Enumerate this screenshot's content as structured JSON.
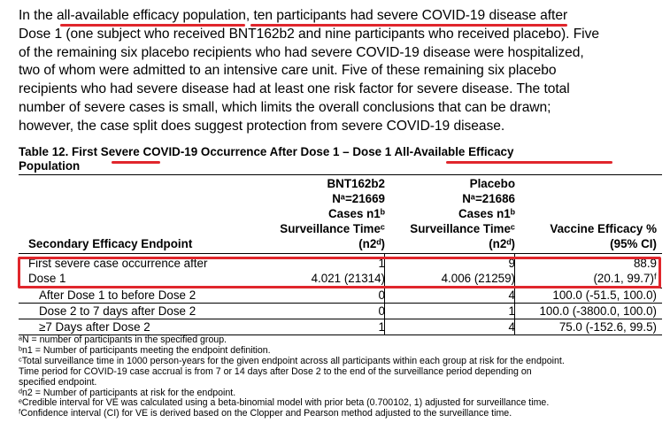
{
  "paragraph": {
    "lines": [
      {
        "pre": "In the ",
        "hl1": "all-available efficacy population, ten participants had severe COVID-19 disease",
        "post": " after"
      },
      {
        "text": "Dose 1 (one subject who received BNT162b2 and nine participants who received placebo). Five"
      },
      {
        "text": "of the remaining six placebo recipients who had severe COVID-19 disease were hospitalized,"
      },
      {
        "text": "two of whom were admitted to an intensive care unit. Five of these remaining six placebo"
      },
      {
        "text": "recipients who had severe disease had at least one risk factor for severe disease. The total"
      },
      {
        "text": "number of severe cases is small, which limits the overall conclusions that can be drawn;"
      },
      {
        "text": "however, the case split does suggest protection from severe COVID-19 disease."
      }
    ]
  },
  "table": {
    "caption_pre": "Table 12. First ",
    "caption_severe": "Severe",
    "caption_mid": " COVID-19 Occurrence After Dose 1 – Dose 1 ",
    "caption_aa": "All-Available Efficacy",
    "caption_line2": "Population",
    "headers": {
      "endpoint": "Secondary Efficacy Endpoint",
      "col1": [
        "BNT162b2",
        "Nᵃ=21669",
        "Cases n1ᵇ",
        "Surveillance Timeᶜ",
        "(n2ᵈ)"
      ],
      "col2": [
        "Placebo",
        "Nᵃ=21686",
        "Cases n1ᵇ",
        "Surveillance Timeᶜ",
        "(n2ᵈ)"
      ],
      "col3": [
        "Vaccine Efficacy %",
        "(95% CI)"
      ]
    },
    "rows": [
      {
        "label_l1": "First severe case occurrence after",
        "label_l2": "Dose 1",
        "c1_l1": "1",
        "c1_l2": "4.021 (21314)",
        "c2_l1": "9",
        "c2_l2": "4.006 (21259)",
        "c3_l1": "88.9",
        "c3_l2": "(20.1, 99.7)ᶠ"
      },
      {
        "label": "After Dose 1 to before Dose 2",
        "c1": "0",
        "c2": "4",
        "c3": "100.0 (-51.5, 100.0)"
      },
      {
        "label": "Dose 2 to 7 days after Dose 2",
        "c1": "0",
        "c2": "1",
        "c3": "100.0 (-3800.0, 100.0)"
      },
      {
        "label": "≥7 Days after Dose 2",
        "c1": "1",
        "c2": "4",
        "c3": "75.0 (-152.6, 99.5)"
      }
    ]
  },
  "footnotes": [
    "ᵃN = number of participants in the specified group.",
    "ᵇn1 = Number of participants meeting the endpoint definition.",
    "ᶜTotal surveillance time in 1000 person-years for the given endpoint across all participants within each group at risk for the endpoint.",
    "Time period for COVID-19 case accrual is from 7 or 14 days after Dose 2 to the end of the surveillance period depending on",
    "specified endpoint.",
    "ᵈn2 = Number of participants at risk for the endpoint.",
    "ᵉCredible interval for VE was calculated using a beta-binomial model with prior beta (0.700102, 1) adjusted for surveillance time.",
    "ᶠConfidence interval (CI) for VE is derived based on the Clopper and Pearson method adjusted to the surveillance time."
  ],
  "colors": {
    "annotation_red": "#e0262c"
  }
}
